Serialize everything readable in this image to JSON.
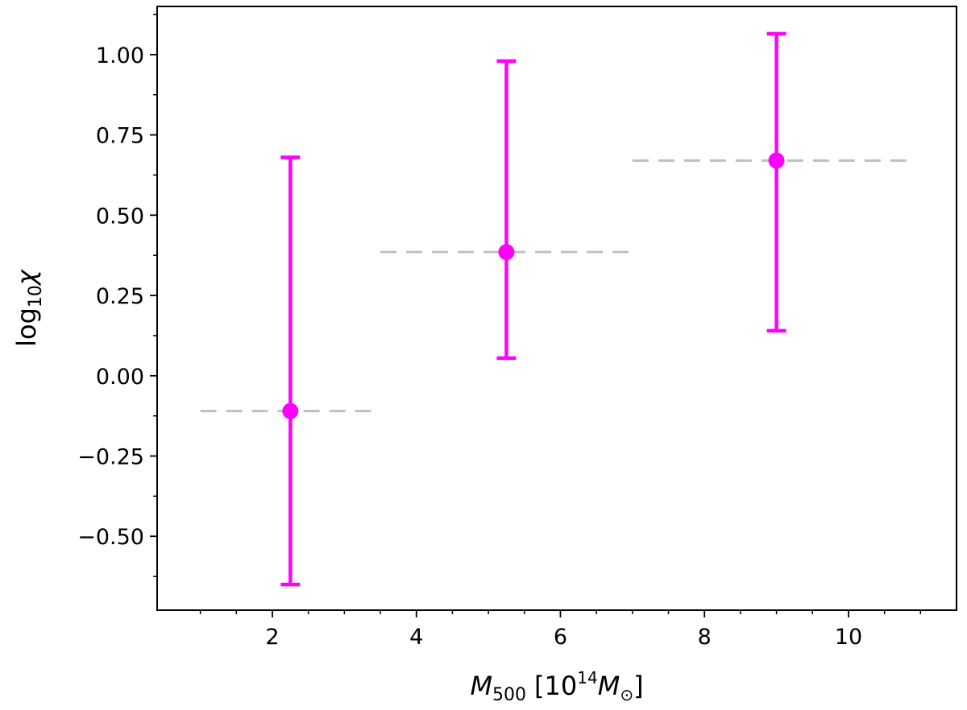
{
  "chart_data": {
    "type": "scatter",
    "title": "",
    "xlabel": {
      "base": "M",
      "base_sub": "500",
      "text_open": "[10",
      "exponent": "14",
      "unit_base": "M",
      "unit_sub": "⊙",
      "text_close": "]"
    },
    "ylabel": {
      "prefix": "log",
      "prefix_sub": "10",
      "symbol": "χ"
    },
    "xlim": [
      0.4,
      11.5
    ],
    "ylim": [
      -0.73,
      1.15
    ],
    "xticks": [
      2,
      4,
      6,
      8,
      10
    ],
    "xtick_labels": [
      "2",
      "4",
      "6",
      "8",
      "10"
    ],
    "xminor_ticks": [
      1,
      1.5,
      2.5,
      3,
      3.5,
      4.5,
      5,
      5.5,
      6.5,
      7,
      7.5,
      8.5,
      9,
      9.5,
      10.5,
      11
    ],
    "yticks": [
      -0.5,
      -0.25,
      0.0,
      0.25,
      0.5,
      0.75,
      1.0
    ],
    "ytick_labels": [
      "−0.50",
      "−0.25",
      "0.00",
      "0.25",
      "0.50",
      "0.75",
      "1.00"
    ],
    "yminor_ticks": [
      -0.625,
      -0.375,
      -0.125,
      0.125,
      0.375,
      0.625,
      0.875,
      1.125
    ],
    "grid": false,
    "points": [
      {
        "x": 2.25,
        "y": -0.11,
        "yerr_low": -0.65,
        "yerr_high": 0.68,
        "bin": [
          1.0,
          3.5
        ]
      },
      {
        "x": 5.25,
        "y": 0.385,
        "yerr_low": 0.055,
        "yerr_high": 0.98,
        "bin": [
          3.5,
          7.0
        ]
      },
      {
        "x": 9.0,
        "y": 0.67,
        "yerr_low": 0.14,
        "yerr_high": 1.065,
        "bin": [
          7.0,
          10.9
        ]
      }
    ],
    "colors": {
      "points": "#ff00ff",
      "bins": "#c0c0c0",
      "axes": "#000000"
    }
  }
}
